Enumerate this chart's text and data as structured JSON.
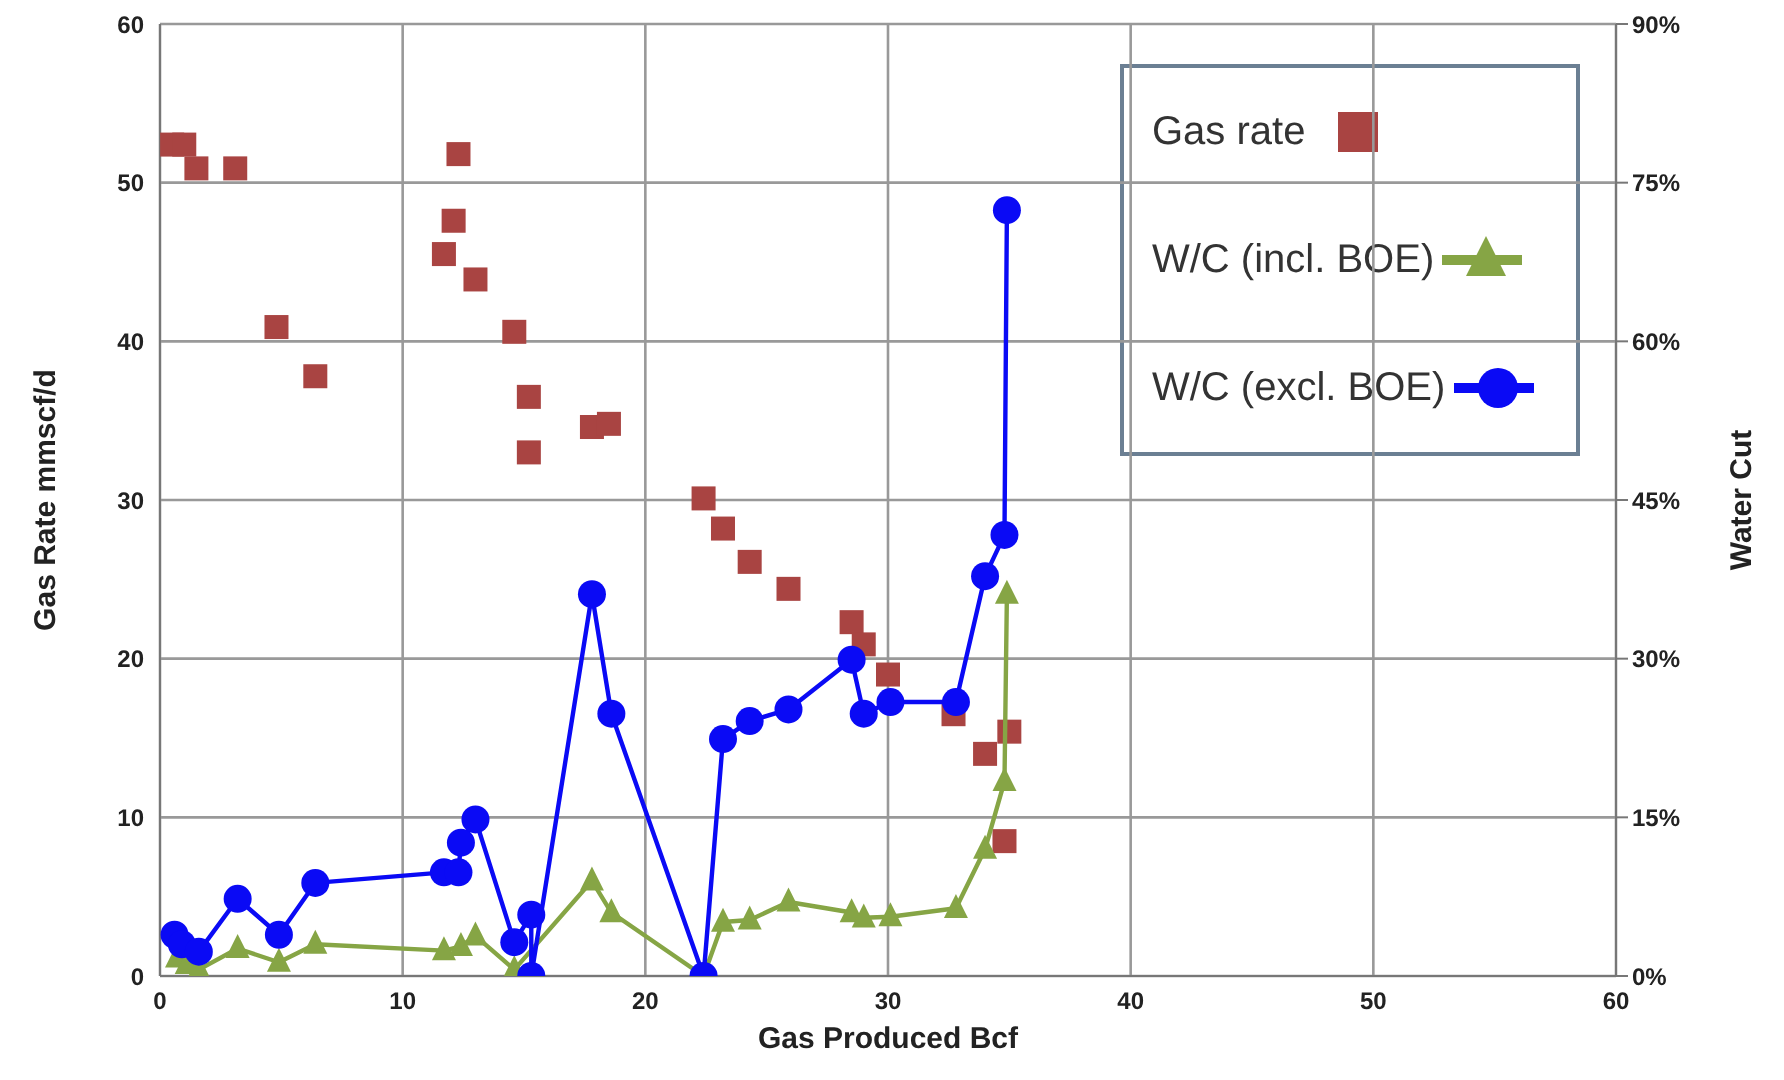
{
  "chart_data": {
    "type": "scatter",
    "xlabel": "Gas Produced Bcf",
    "ylabel": "Gas Rate mmscf/d",
    "y2label": "Water Cut",
    "xlim": [
      0,
      60
    ],
    "xticks": [
      0,
      10,
      20,
      30,
      40,
      50,
      60
    ],
    "ylim": [
      0,
      60
    ],
    "yticks": [
      0,
      10,
      20,
      30,
      40,
      50,
      60
    ],
    "y2lim": [
      0,
      90
    ],
    "y2ticks": [
      {
        "value": 0,
        "label": "0%"
      },
      {
        "value": 15,
        "label": "15%"
      },
      {
        "value": 30,
        "label": "30%"
      },
      {
        "value": 45,
        "label": "45%"
      },
      {
        "value": 60,
        "label": "60%"
      },
      {
        "value": 75,
        "label": "75%"
      },
      {
        "value": 90,
        "label": "90%"
      }
    ],
    "grid": true,
    "legend": "top right",
    "series": [
      {
        "name": "Gas rate",
        "type": "scatter",
        "marker": "square",
        "color": "#a94442",
        "x": [
          0.5,
          1.0,
          1.5,
          3.1,
          4.8,
          6.4,
          12.3,
          12.1,
          11.7,
          13.0,
          14.6,
          15.2,
          15.2,
          17.8,
          18.5,
          22.4,
          23.2,
          24.3,
          25.9,
          28.5,
          29.0,
          30.0,
          32.7,
          34.0,
          34.8,
          35.0
        ],
        "values": [
          52.4,
          52.4,
          50.9,
          50.9,
          40.9,
          37.8,
          51.8,
          47.6,
          45.5,
          43.9,
          40.6,
          36.5,
          33.0,
          34.6,
          34.8,
          30.1,
          28.2,
          26.1,
          24.4,
          22.3,
          20.9,
          19.0,
          16.5,
          14.0,
          8.5,
          15.4
        ]
      },
      {
        "name": "W/C (incl. BOE)",
        "type": "line",
        "axis": "y2",
        "marker": "triangle",
        "color": "#86a545",
        "x": [
          0.7,
          1.1,
          1.6,
          3.2,
          4.9,
          6.4,
          11.7,
          12.4,
          13.0,
          14.6,
          17.8,
          18.6,
          22.4,
          23.2,
          24.3,
          25.9,
          28.5,
          29.0,
          30.1,
          32.8,
          34.0,
          34.8,
          34.9
        ],
        "values": [
          1.7,
          1.1,
          0.6,
          2.6,
          1.3,
          3.0,
          2.4,
          2.8,
          3.8,
          0.6,
          9.0,
          6.0,
          0,
          5.1,
          5.3,
          7.0,
          6.0,
          5.5,
          5.6,
          6.4,
          12.0,
          18.4,
          36.1
        ]
      },
      {
        "name": "W/C (excl. BOE)",
        "type": "line",
        "axis": "y2",
        "marker": "circle",
        "color": "#0a0af5",
        "x": [
          0.6,
          0.9,
          1.6,
          3.2,
          4.9,
          6.4,
          11.7,
          12.3,
          12.4,
          13.0,
          14.6,
          15.3,
          15.3,
          17.8,
          18.6,
          22.4,
          23.2,
          24.3,
          25.9,
          28.5,
          29.0,
          30.1,
          32.8,
          34.0,
          34.8,
          34.9
        ],
        "values": [
          3.9,
          3.0,
          2.3,
          7.3,
          3.9,
          8.8,
          9.8,
          9.8,
          12.6,
          14.8,
          3.2,
          5.8,
          0,
          36.1,
          24.8,
          0,
          22.4,
          24.1,
          25.2,
          29.9,
          24.8,
          25.9,
          25.9,
          37.8,
          41.7,
          72.4
        ]
      }
    ]
  }
}
